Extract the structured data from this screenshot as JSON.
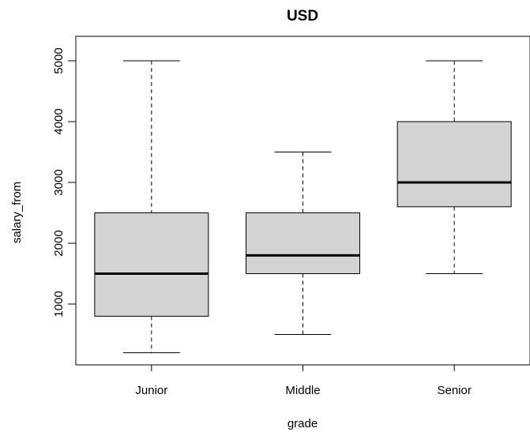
{
  "chart_data": {
    "type": "boxplot",
    "title": "USD",
    "xlabel": "grade",
    "ylabel": "salary_from",
    "categories": [
      "Junior",
      "Middle",
      "Senior"
    ],
    "boxes": [
      {
        "name": "Junior",
        "whisker_low": 200,
        "q1": 800,
        "median": 1500,
        "q3": 2500,
        "whisker_high": 5000
      },
      {
        "name": "Middle",
        "whisker_low": 500,
        "q1": 1500,
        "median": 1800,
        "q3": 2500,
        "whisker_high": 3500
      },
      {
        "name": "Senior",
        "whisker_low": 1500,
        "q1": 2600,
        "median": 3000,
        "q3": 4000,
        "whisker_high": 5000
      }
    ],
    "yticks": [
      "1000",
      "2000",
      "3000",
      "4000",
      "5000"
    ],
    "ylim": [
      0,
      5200
    ],
    "grid": false,
    "colors": {
      "box_fill": "#d3d3d3",
      "stroke": "#000000"
    }
  }
}
